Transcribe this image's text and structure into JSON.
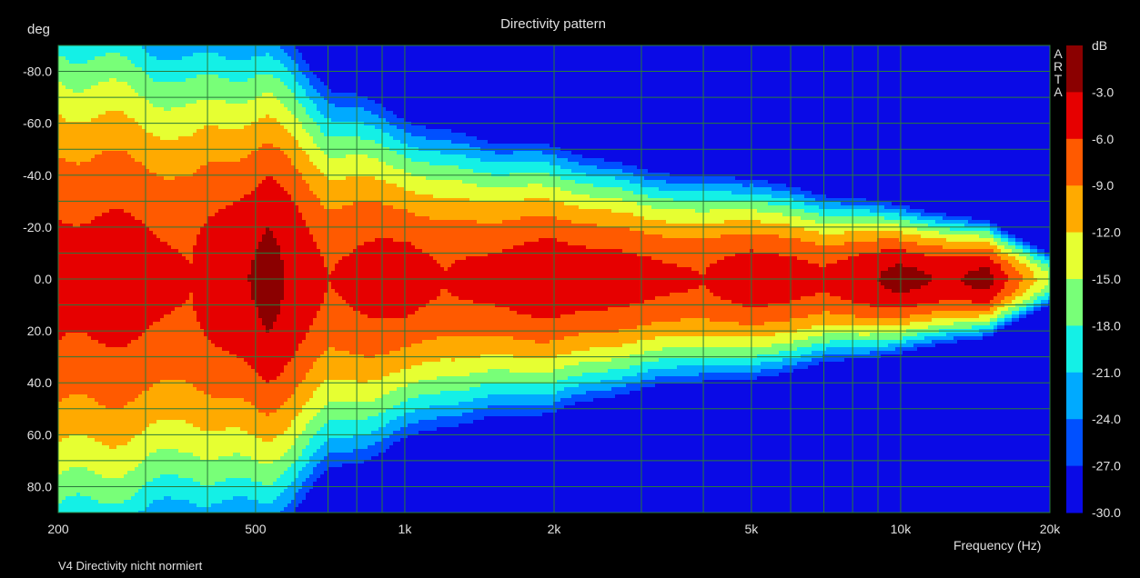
{
  "chart_data": {
    "type": "heatmap",
    "title": "Directivity pattern",
    "ylabel": "deg",
    "xlabel": "Frequency (Hz)",
    "footer": "V4 Directivity nicht normiert",
    "watermark": [
      "A",
      "R",
      "T",
      "A"
    ],
    "x_scale": "log",
    "xlim": [
      200,
      20000
    ],
    "x_ticks": [
      {
        "value": 200,
        "label": "200"
      },
      {
        "value": 500,
        "label": "500"
      },
      {
        "value": 1000,
        "label": "1k"
      },
      {
        "value": 2000,
        "label": "2k"
      },
      {
        "value": 5000,
        "label": "5k"
      },
      {
        "value": 10000,
        "label": "10k"
      },
      {
        "value": 20000,
        "label": "20k"
      }
    ],
    "x_grid": [
      200,
      300,
      400,
      500,
      600,
      700,
      800,
      900,
      1000,
      2000,
      3000,
      4000,
      5000,
      6000,
      7000,
      8000,
      9000,
      10000,
      20000
    ],
    "ylim": [
      -90,
      90
    ],
    "y_ticks": [
      {
        "value": -80,
        "label": "-80.0"
      },
      {
        "value": -60,
        "label": "-60.0"
      },
      {
        "value": -40,
        "label": "-40.0"
      },
      {
        "value": -20,
        "label": "-20.0"
      },
      {
        "value": 0,
        "label": "0.0"
      },
      {
        "value": 20,
        "label": "20.0"
      },
      {
        "value": 40,
        "label": "40.0"
      },
      {
        "value": 60,
        "label": "60.0"
      },
      {
        "value": 80,
        "label": "80.0"
      }
    ],
    "grid": true,
    "colorbar": {
      "unit": "dB",
      "min": -30,
      "max": 0,
      "levels": [
        {
          "from": -3,
          "to": 0,
          "color": "#8b0000",
          "label": ""
        },
        {
          "from": -6,
          "to": -3,
          "color": "#e60000",
          "label": "-3.0"
        },
        {
          "from": -9,
          "to": -6,
          "color": "#ff5a00",
          "label": "-6.0"
        },
        {
          "from": -12,
          "to": -9,
          "color": "#ffaa00",
          "label": "-9.0"
        },
        {
          "from": -15,
          "to": -12,
          "color": "#e6ff32",
          "label": "-12.0"
        },
        {
          "from": -18,
          "to": -15,
          "color": "#78ff78",
          "label": "-15.0"
        },
        {
          "from": -21,
          "to": -18,
          "color": "#14f0e6",
          "label": "-18.0"
        },
        {
          "from": -24,
          "to": -21,
          "color": "#00aaff",
          "label": "-21.0"
        },
        {
          "from": -27,
          "to": -24,
          "color": "#0050ff",
          "label": "-24.0"
        },
        {
          "from": -30,
          "to": -27,
          "color": "#0a0ae6",
          "label": "-27.0"
        }
      ],
      "bottom_label": "-30.0"
    },
    "on_axis_level_db": [
      {
        "freq": 200,
        "db": -5
      },
      {
        "freq": 300,
        "db": -5
      },
      {
        "freq": 370,
        "db": -6
      },
      {
        "freq": 530,
        "db": -2
      },
      {
        "freq": 700,
        "db": -6
      },
      {
        "freq": 1000,
        "db": -4.5
      },
      {
        "freq": 1200,
        "db": -6
      },
      {
        "freq": 2000,
        "db": -4
      },
      {
        "freq": 3000,
        "db": -5
      },
      {
        "freq": 4000,
        "db": -6
      },
      {
        "freq": 5000,
        "db": -4
      },
      {
        "freq": 7000,
        "db": -5.5
      },
      {
        "freq": 10000,
        "db": -2
      },
      {
        "freq": 12500,
        "db": -3.5
      },
      {
        "freq": 15000,
        "db": -2
      },
      {
        "freq": 20000,
        "db": -15
      }
    ],
    "beamwidth_deg": [
      {
        "freq": 200,
        "bw": 60
      },
      {
        "freq": 300,
        "bw": 55
      },
      {
        "freq": 500,
        "bw": 50
      },
      {
        "freq": 700,
        "bw": 40
      },
      {
        "freq": 1000,
        "bw": 32
      },
      {
        "freq": 1500,
        "bw": 28
      },
      {
        "freq": 2000,
        "bw": 26
      },
      {
        "freq": 3000,
        "bw": 22
      },
      {
        "freq": 5000,
        "bw": 20
      },
      {
        "freq": 7000,
        "bw": 17
      },
      {
        "freq": 10000,
        "bw": 14
      },
      {
        "freq": 15000,
        "bw": 11
      },
      {
        "freq": 20000,
        "bw": 7
      }
    ]
  }
}
